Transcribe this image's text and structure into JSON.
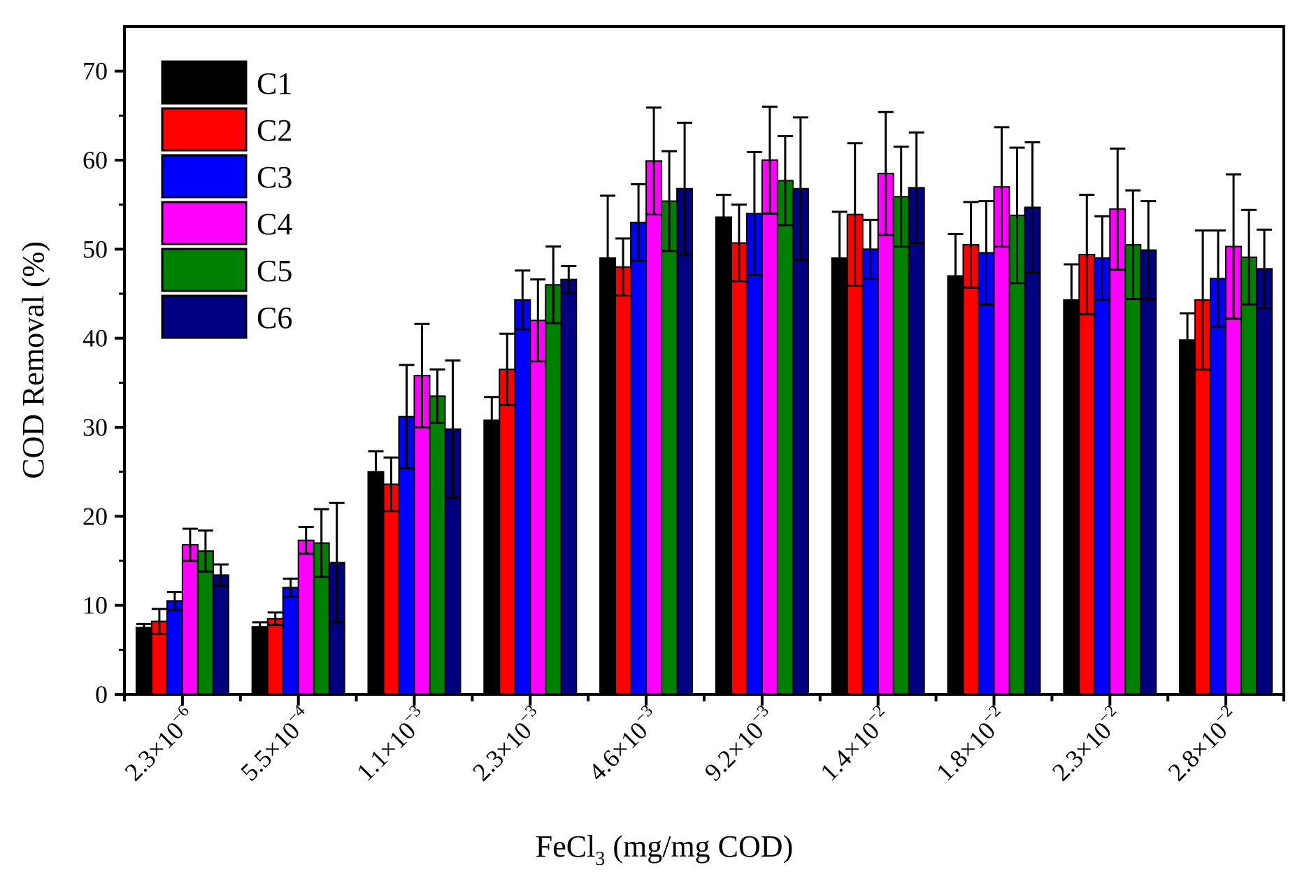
{
  "chart_data": {
    "type": "bar",
    "title": "",
    "xlabel": "FeCl",
    "xlabel_subscript": "3",
    "xlabel_suffix": " (mg/mg COD)",
    "ylabel": "COD Removal (%)",
    "ylim": [
      0,
      75
    ],
    "yticks": [
      0,
      10,
      20,
      30,
      40,
      50,
      60,
      70
    ],
    "yticks_text": [
      "0",
      "10",
      "20",
      "30",
      "40",
      "50",
      "60",
      "70"
    ],
    "legend_position": "top-left",
    "categories": [
      {
        "mantissa": "2.3×10",
        "exponent": "−6"
      },
      {
        "mantissa": "5.5×10",
        "exponent": "−4"
      },
      {
        "mantissa": "1.1×10",
        "exponent": "−3"
      },
      {
        "mantissa": "2.3×10",
        "exponent": "−3"
      },
      {
        "mantissa": "4.6×10",
        "exponent": "−3"
      },
      {
        "mantissa": "9.2×10",
        "exponent": "−3"
      },
      {
        "mantissa": "1.4×10",
        "exponent": "−2"
      },
      {
        "mantissa": "1.8×10",
        "exponent": "−2"
      },
      {
        "mantissa": "2.3×10",
        "exponent": "−2"
      },
      {
        "mantissa": "2.8×10",
        "exponent": "−2"
      }
    ],
    "series": [
      {
        "name": "C1",
        "color": "#000000",
        "values": [
          7.5,
          7.6,
          25.0,
          30.8,
          49.0,
          53.6,
          49.0,
          47.0,
          44.3,
          39.8
        ],
        "errors": [
          0.4,
          0.5,
          2.3,
          2.6,
          7.0,
          2.5,
          5.2,
          4.7,
          4.0,
          3.0
        ]
      },
      {
        "name": "C2",
        "color": "#ff0000",
        "values": [
          8.2,
          8.5,
          23.6,
          36.5,
          48.0,
          50.7,
          53.9,
          50.5,
          49.4,
          44.3
        ],
        "errors": [
          1.4,
          0.7,
          3.0,
          4.0,
          3.2,
          4.3,
          8.0,
          4.8,
          6.7,
          7.8
        ]
      },
      {
        "name": "C3",
        "color": "#0000ff",
        "values": [
          10.5,
          12.0,
          31.2,
          44.3,
          53.0,
          54.0,
          50.0,
          49.6,
          49.0,
          46.7
        ],
        "errors": [
          1.0,
          1.0,
          5.8,
          3.3,
          4.3,
          6.9,
          3.3,
          5.8,
          4.7,
          5.4
        ]
      },
      {
        "name": "C4",
        "color": "#ff00ff",
        "values": [
          16.8,
          17.3,
          35.8,
          42.0,
          59.9,
          60.0,
          58.5,
          57.0,
          54.5,
          50.3
        ],
        "errors": [
          1.8,
          1.5,
          5.8,
          4.6,
          6.0,
          6.0,
          6.9,
          6.7,
          6.8,
          8.1
        ]
      },
      {
        "name": "C5",
        "color": "#008000",
        "values": [
          16.1,
          17.0,
          33.5,
          46.0,
          55.4,
          57.7,
          55.9,
          53.8,
          50.5,
          49.1
        ],
        "errors": [
          2.3,
          3.8,
          3.0,
          4.3,
          5.6,
          5.0,
          5.6,
          7.6,
          6.1,
          5.3
        ]
      },
      {
        "name": "C6",
        "color": "#000080",
        "values": [
          13.4,
          14.8,
          29.8,
          46.6,
          56.8,
          56.8,
          56.9,
          54.7,
          49.9,
          47.8
        ],
        "errors": [
          1.2,
          6.7,
          7.7,
          1.5,
          7.4,
          8.0,
          6.2,
          7.3,
          5.5,
          4.4
        ]
      }
    ]
  }
}
